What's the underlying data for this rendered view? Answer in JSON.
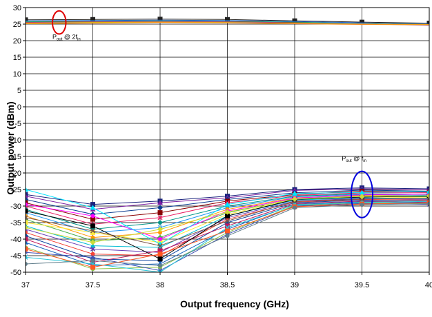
{
  "chart_data": {
    "type": "line",
    "xlabel": "Output frequency (GHz)",
    "ylabel": "Output power (dBm)",
    "x": [
      37,
      37.5,
      38,
      38.5,
      39,
      39.5,
      40
    ],
    "x_tick_labels": [
      "37",
      "37.5",
      "38",
      "38.5",
      "39",
      "39.5",
      "40"
    ],
    "y_tick_labels": [
      "30",
      "25",
      "20",
      "15",
      "10",
      "5",
      "0",
      "-5",
      "-10",
      "-15",
      "-20",
      "-25",
      "-30",
      "-35",
      "-40",
      "-45",
      "-50"
    ],
    "ylim": [
      -50,
      30
    ],
    "xlim": [
      37,
      40
    ],
    "grid": true,
    "legend": "none",
    "annotations": [
      {
        "main": "P",
        "sub1": "out",
        "mid": " @ 2f",
        "sub2": "in",
        "x": 37.2,
        "y": 20.5
      },
      {
        "main": "P",
        "sub1": "out",
        "mid": " @ f",
        "sub2": "in",
        "x": 39.35,
        "y": -16.2
      }
    ],
    "highlight_ellipses": [
      {
        "cx": 37.25,
        "cy": 25.5,
        "rx": 0.05,
        "ry": 3.5,
        "color": "#e00000"
      },
      {
        "cx": 39.5,
        "cy": -26.5,
        "rx": 0.08,
        "ry": 7.0,
        "color": "#0000dd"
      }
    ],
    "upper_series": [
      {
        "color": "#222222",
        "marker": "square",
        "values": [
          26.3,
          26.4,
          26.5,
          26.4,
          26.0,
          25.6,
          25.3
        ]
      },
      {
        "color": "#1f5fd0",
        "marker": "none",
        "values": [
          26.0,
          26.1,
          26.2,
          26.1,
          25.8,
          25.4,
          25.0
        ]
      },
      {
        "color": "#30a8a8",
        "marker": "none",
        "values": [
          25.8,
          25.9,
          26.0,
          25.9,
          25.6,
          25.2,
          24.7
        ]
      },
      {
        "color": "#2ca02c",
        "marker": "none",
        "values": [
          25.6,
          25.8,
          25.9,
          25.8,
          25.5,
          25.1,
          24.9
        ]
      },
      {
        "color": "#d62728",
        "marker": "none",
        "values": [
          25.5,
          25.7,
          25.8,
          25.7,
          25.4,
          25.0,
          24.8
        ]
      },
      {
        "color": "#9467bd",
        "marker": "none",
        "values": [
          25.4,
          25.6,
          25.7,
          25.6,
          25.3,
          25.1,
          24.6
        ]
      },
      {
        "color": "#e6b800",
        "marker": "none",
        "values": [
          25.3,
          25.5,
          25.6,
          25.5,
          25.2,
          25.0,
          24.9
        ]
      },
      {
        "color": "#ff8c1a",
        "marker": "none",
        "values": [
          25.1,
          25.3,
          25.5,
          25.4,
          25.1,
          24.9,
          24.8
        ]
      }
    ],
    "lower_series": [
      {
        "color": "#1a237e",
        "marker": "square",
        "values": [
          -26.5,
          -29.5,
          -28.5,
          -27.0,
          -25.0,
          -24.5,
          -24.8
        ]
      },
      {
        "color": "#7b1fa2",
        "marker": "triangle",
        "values": [
          -27.0,
          -31.0,
          -29.0,
          -27.5,
          -25.3,
          -24.8,
          -25.0
        ]
      },
      {
        "color": "#0b3d91",
        "marker": "diamond",
        "values": [
          -28.0,
          -32.5,
          -30.5,
          -28.0,
          -26.0,
          -25.2,
          -25.5
        ]
      },
      {
        "color": "#8b0000",
        "marker": "square",
        "values": [
          -29.0,
          -34.0,
          -32.0,
          -28.5,
          -26.5,
          -25.5,
          -25.8
        ]
      },
      {
        "color": "#e91e63",
        "marker": "x",
        "values": [
          -30.0,
          -35.5,
          -33.5,
          -29.0,
          -26.8,
          -26.0,
          -26.0
        ]
      },
      {
        "color": "#009688",
        "marker": "circle",
        "values": [
          -31.0,
          -37.0,
          -35.0,
          -30.0,
          -27.0,
          -26.3,
          -26.5
        ]
      },
      {
        "color": "#2196f3",
        "marker": "star",
        "values": [
          -32.0,
          -38.0,
          -36.5,
          -30.5,
          -27.2,
          -26.5,
          -26.8
        ]
      },
      {
        "color": "#ff9800",
        "marker": "circle",
        "values": [
          -33.0,
          -39.5,
          -38.0,
          -31.0,
          -27.5,
          -26.8,
          -27.0
        ]
      },
      {
        "color": "#4caf50",
        "marker": "diamond",
        "values": [
          -34.0,
          -40.5,
          -39.5,
          -32.0,
          -27.8,
          -27.0,
          -27.2
        ]
      },
      {
        "color": "#ffeb3b",
        "marker": "square",
        "values": [
          -35.0,
          -38.0,
          -41.0,
          -32.5,
          -28.0,
          -27.2,
          -27.5
        ]
      },
      {
        "color": "#00bcd4",
        "marker": "triangle",
        "values": [
          -36.0,
          -42.0,
          -42.5,
          -33.0,
          -28.2,
          -27.5,
          -27.8
        ]
      },
      {
        "color": "#673ab7",
        "marker": "x",
        "values": [
          -37.0,
          -43.0,
          -44.0,
          -33.5,
          -28.5,
          -27.7,
          -28.0
        ]
      },
      {
        "color": "#f44336",
        "marker": "circle",
        "values": [
          -38.0,
          -44.5,
          -45.0,
          -34.0,
          -28.8,
          -28.0,
          -28.2
        ]
      },
      {
        "color": "#0d47a1",
        "marker": "diamond",
        "values": [
          -39.0,
          -46.0,
          -46.5,
          -35.0,
          -29.0,
          -28.2,
          -28.5
        ]
      },
      {
        "color": "#c2185b",
        "marker": "square",
        "values": [
          -40.0,
          -47.0,
          -43.5,
          -36.0,
          -29.3,
          -28.5,
          -28.8
        ]
      },
      {
        "color": "#1565c0",
        "marker": "triangle",
        "values": [
          -41.0,
          -48.0,
          -47.5,
          -37.0,
          -29.5,
          -28.7,
          -29.0
        ]
      },
      {
        "color": "#8bc34a",
        "marker": "circle",
        "values": [
          -42.5,
          -49.0,
          -48.5,
          -38.0,
          -29.8,
          -29.0,
          -29.2
        ]
      },
      {
        "color": "#3f51b5",
        "marker": "star",
        "values": [
          -44.0,
          -45.5,
          -49.5,
          -38.5,
          -30.0,
          -29.2,
          -29.5
        ]
      },
      {
        "color": "#26c6da",
        "marker": "x",
        "values": [
          -45.5,
          -47.5,
          -50.0,
          -36.5,
          -29.6,
          -28.9,
          -28.6
        ]
      },
      {
        "color": "#000000",
        "marker": "square",
        "values": [
          -31.5,
          -36.0,
          -46.0,
          -33.0,
          -28.0,
          -27.3,
          -27.0
        ]
      },
      {
        "color": "#ff00ff",
        "marker": "circle",
        "values": [
          -29.5,
          -33.0,
          -40.0,
          -31.5,
          -27.6,
          -26.6,
          -26.4
        ]
      },
      {
        "color": "#00e5ff",
        "marker": "triangle",
        "values": [
          -25.0,
          -30.5,
          -41.5,
          -29.5,
          -26.2,
          -25.9,
          -25.6
        ]
      },
      {
        "color": "#795548",
        "marker": "x",
        "values": [
          -33.5,
          -37.5,
          -42.0,
          -34.5,
          -28.6,
          -27.9,
          -27.6
        ]
      },
      {
        "color": "#cddc39",
        "marker": "diamond",
        "values": [
          -36.5,
          -41.0,
          -37.0,
          -31.8,
          -27.9,
          -27.1,
          -26.9
        ]
      },
      {
        "color": "#ff5722",
        "marker": "square",
        "values": [
          -43.0,
          -48.5,
          -44.5,
          -37.5,
          -30.2,
          -29.4,
          -29.0
        ]
      },
      {
        "color": "#607d8b",
        "marker": "circle",
        "values": [
          -47.5,
          -46.5,
          -48.0,
          -39.0,
          -30.5,
          -29.6,
          -29.3
        ]
      }
    ]
  }
}
